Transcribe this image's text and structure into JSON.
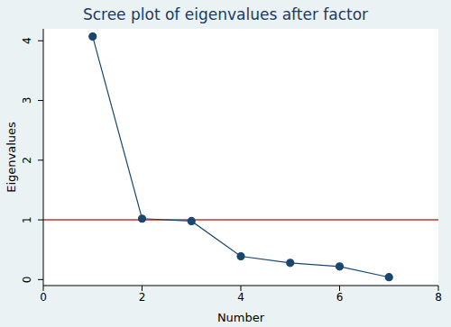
{
  "chart_data": {
    "type": "line",
    "title": "Scree plot of eigenvalues after factor",
    "x_label": "Number",
    "y_label": "Eigenvalues",
    "x": [
      1,
      2,
      3,
      4,
      5,
      6,
      7
    ],
    "values": [
      4.07,
      1.02,
      0.98,
      0.39,
      0.28,
      0.22,
      0.04
    ],
    "color": "#1a476f",
    "marker": "circle",
    "xlim": [
      0,
      8
    ],
    "xticks": [
      0,
      2,
      4,
      6,
      8
    ],
    "ylim": [
      -0.1,
      4.2
    ],
    "yticks": [
      0,
      1,
      2,
      3,
      4
    ],
    "reference_lines": [
      {
        "y": 1,
        "color": "#c0392b"
      }
    ],
    "grid": false
  }
}
